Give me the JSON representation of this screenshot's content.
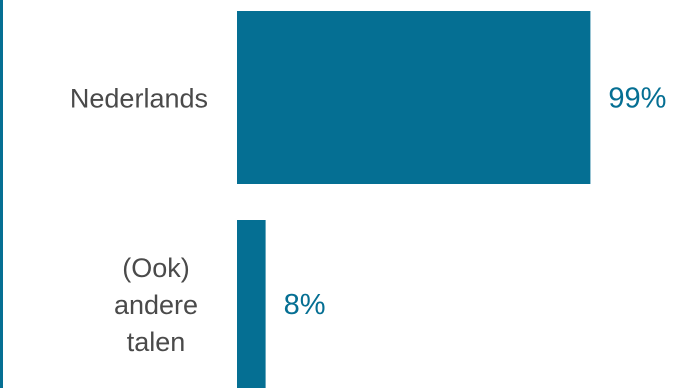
{
  "chart_data": {
    "type": "bar",
    "orientation": "horizontal",
    "categories": [
      "Nederlands",
      "(Ook) andere talen"
    ],
    "category_lines": [
      [
        "Nederlands"
      ],
      [
        "(Ook)",
        "andere",
        "talen"
      ]
    ],
    "values": [
      99,
      8
    ],
    "value_labels": [
      "99%",
      "8%"
    ],
    "unit": "%",
    "xlim": [
      0,
      100
    ],
    "title": "",
    "xlabel": "",
    "ylabel": "",
    "grid": false,
    "legend": "none"
  },
  "colors": {
    "bar": "#056F93",
    "value_text": "#056F93",
    "category_text": "#4A4A4A",
    "left_rule": "#056F93",
    "background": "#FFFFFF"
  }
}
